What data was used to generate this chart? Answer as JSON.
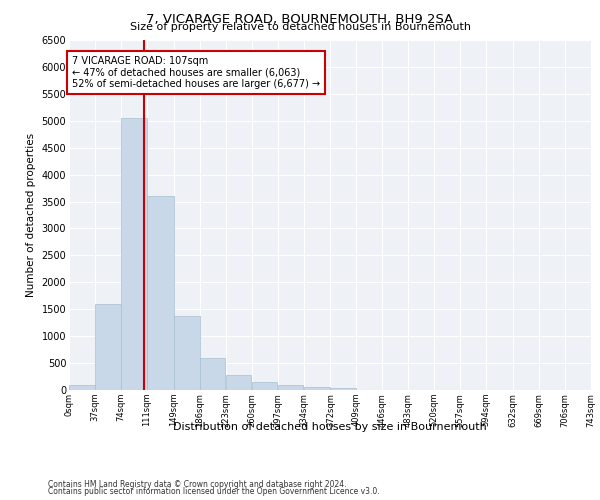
{
  "title": "7, VICARAGE ROAD, BOURNEMOUTH, BH9 2SA",
  "subtitle": "Size of property relative to detached houses in Bournemouth",
  "xlabel": "Distribution of detached houses by size in Bournemouth",
  "ylabel": "Number of detached properties",
  "bar_color": "#c8d8e8",
  "bar_edge_color": "#a8c0d0",
  "plot_bg_color": "#eef2f7",
  "grid_color": "#ffffff",
  "bin_edges": [
    0,
    37,
    74,
    111,
    149,
    186,
    223,
    260,
    297,
    334,
    372,
    409,
    446,
    483,
    520,
    557,
    594,
    632,
    669,
    706,
    743
  ],
  "bin_labels": [
    "0sqm",
    "37sqm",
    "74sqm",
    "111sqm",
    "149sqm",
    "186sqm",
    "223sqm",
    "260sqm",
    "297sqm",
    "334sqm",
    "372sqm",
    "409sqm",
    "446sqm",
    "483sqm",
    "520sqm",
    "557sqm",
    "594sqm",
    "632sqm",
    "669sqm",
    "706sqm",
    "743sqm"
  ],
  "bar_heights": [
    100,
    1600,
    5050,
    3600,
    1380,
    590,
    270,
    140,
    85,
    55,
    30,
    0,
    0,
    0,
    0,
    0,
    0,
    0,
    0,
    0
  ],
  "property_size": 107,
  "red_line_color": "#cc0000",
  "annotation_text": "7 VICARAGE ROAD: 107sqm\n← 47% of detached houses are smaller (6,063)\n52% of semi-detached houses are larger (6,677) →",
  "annotation_box_color": "#cc0000",
  "ylim": [
    0,
    6500
  ],
  "yticks": [
    0,
    500,
    1000,
    1500,
    2000,
    2500,
    3000,
    3500,
    4000,
    4500,
    5000,
    5500,
    6000,
    6500
  ],
  "footer_line1": "Contains HM Land Registry data © Crown copyright and database right 2024.",
  "footer_line2": "Contains public sector information licensed under the Open Government Licence v3.0."
}
